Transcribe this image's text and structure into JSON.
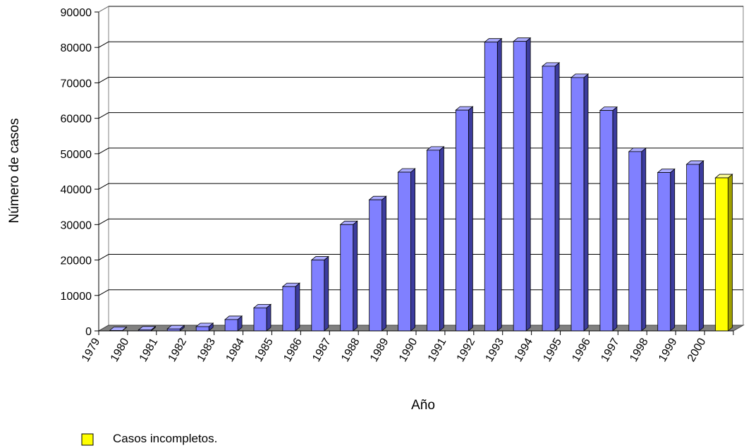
{
  "chart_data": {
    "type": "bar",
    "xlabel": "Año",
    "ylabel": "Número de casos",
    "ylim": [
      0,
      90000
    ],
    "yticks": [
      0,
      10000,
      20000,
      30000,
      40000,
      50000,
      60000,
      70000,
      80000,
      90000
    ],
    "grid": true,
    "categories": [
      "1979",
      "1980",
      "1981",
      "1982",
      "1983",
      "1984",
      "1985",
      "1986",
      "1987",
      "1988",
      "1989",
      "1990",
      "1991",
      "1992",
      "1993",
      "1994",
      "1995",
      "1996",
      "1997",
      "1998",
      "1999",
      "2000"
    ],
    "values": [
      100,
      250,
      550,
      1200,
      3200,
      6500,
      12500,
      20000,
      30000,
      37000,
      44800,
      51000,
      62300,
      81500,
      81700,
      74700,
      71500,
      62200,
      50600,
      44700,
      47000,
      43200
    ],
    "incomplete_categories": [
      "2000"
    ],
    "colors": {
      "bar_front": "#8080ff",
      "bar_side": "#3c3c9e",
      "bar_top": "#aaaaff",
      "incomplete_front": "#ffff00",
      "incomplete_side": "#a0a000",
      "incomplete_top": "#ffff99",
      "floor": "#808080",
      "grid": "#000000"
    },
    "legend": {
      "position": "bottom-left",
      "label": "Casos incompletos.",
      "color": "#ffff00"
    }
  }
}
